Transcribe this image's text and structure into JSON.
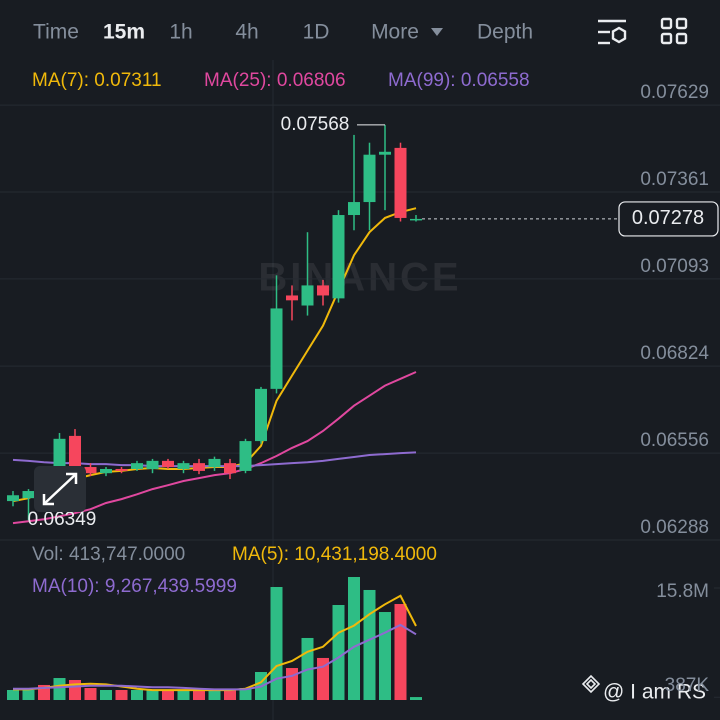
{
  "tabs": [
    "Time",
    "15m",
    "1h",
    "4h",
    "1D",
    "More",
    "Depth"
  ],
  "active_tab": 1,
  "watermark": "BINANCE",
  "credit": "@ I am RS",
  "chart_data": [
    {
      "type": "candlestick",
      "up_color": "#2ebd85",
      "down_color": "#f6465d",
      "open": [
        0.06408,
        0.06417,
        0.06476,
        0.06439,
        0.06609,
        0.06513,
        0.06494,
        0.06507,
        0.06507,
        0.06507,
        0.06532,
        0.06507,
        0.06525,
        0.06513,
        0.06525,
        0.06501,
        0.06593,
        0.06754,
        0.07042,
        0.07011,
        0.07073,
        0.07033,
        0.0729,
        0.0733,
        0.07476,
        0.07497,
        0.07275
      ],
      "high": [
        0.06439,
        0.06445,
        0.06485,
        0.06618,
        0.0663,
        0.06525,
        0.06513,
        0.06513,
        0.06532,
        0.06538,
        0.06538,
        0.06532,
        0.06538,
        0.06545,
        0.06538,
        0.066,
        0.0676,
        0.07104,
        0.07073,
        0.07237,
        0.0709,
        0.07305,
        0.07537,
        0.07513,
        0.07568,
        0.07513,
        0.0729
      ],
      "low": [
        0.06392,
        0.06349,
        0.06417,
        0.06426,
        0.06507,
        0.06485,
        0.06485,
        0.06494,
        0.06501,
        0.06494,
        0.06507,
        0.06494,
        0.06491,
        0.06501,
        0.06476,
        0.06494,
        0.06585,
        0.0674,
        0.06965,
        0.0698,
        0.07011,
        0.0702,
        0.07243,
        0.07243,
        0.07305,
        0.0727,
        0.0727
      ],
      "close": [
        0.06426,
        0.06439,
        0.06432,
        0.066,
        0.06516,
        0.06494,
        0.06507,
        0.06501,
        0.06525,
        0.06532,
        0.06513,
        0.06525,
        0.06501,
        0.06538,
        0.06494,
        0.06593,
        0.06754,
        0.07002,
        0.07027,
        0.07073,
        0.07042,
        0.0729,
        0.0733,
        0.07476,
        0.07485,
        0.07281,
        0.07278
      ],
      "ylim": [
        0.06288,
        0.07768
      ],
      "yticks": [
        0.07629,
        0.07361,
        0.07093,
        0.06824,
        0.06556,
        0.06288
      ],
      "grid": true,
      "last_price": 0.07278,
      "max_label": 0.07568,
      "min_label": 0.06349,
      "series": [
        {
          "name": "MA(7): 0.07311",
          "color": "#f0b90b",
          "values": [
            0.06408,
            0.06417,
            0.06439,
            0.06454,
            0.06476,
            0.06488,
            0.06498,
            0.06501,
            0.06507,
            0.0651,
            0.06507,
            0.06507,
            0.0651,
            0.06513,
            0.06513,
            0.06525,
            0.06578,
            0.06717,
            0.06795,
            0.06872,
            0.06949,
            0.07058,
            0.07166,
            0.07237,
            0.07281,
            0.07299,
            0.07311
          ]
        },
        {
          "name": "MA(25): 0.06806",
          "color": "#e0489f",
          "values": [
            0.0634,
            0.06346,
            0.06352,
            0.06361,
            0.06371,
            0.06383,
            0.06402,
            0.06414,
            0.06429,
            0.06445,
            0.06457,
            0.0647,
            0.06479,
            0.06488,
            0.06494,
            0.06507,
            0.06525,
            0.06547,
            0.06572,
            0.06593,
            0.06624,
            0.06662,
            0.06702,
            0.06733,
            0.06764,
            0.06785,
            0.06806
          ]
        },
        {
          "name": "MA(99): 0.06558",
          "color": "#8e6bd0",
          "values": [
            0.06535,
            0.06532,
            0.06528,
            0.06525,
            0.06525,
            0.06522,
            0.06522,
            0.06519,
            0.06519,
            0.06516,
            0.06516,
            0.06516,
            0.06516,
            0.06516,
            0.06516,
            0.06516,
            0.06519,
            0.06522,
            0.06525,
            0.06528,
            0.06532,
            0.06538,
            0.06544,
            0.0655,
            0.06553,
            0.06556,
            0.06558
          ]
        }
      ]
    },
    {
      "type": "bar",
      "title": "Vol: 413,747.0000",
      "values": [
        1410000,
        1410000,
        2120000,
        3100000,
        2820000,
        1690000,
        1410000,
        1410000,
        1410000,
        1410000,
        1270000,
        1410000,
        1270000,
        1270000,
        1410000,
        1690000,
        3950000,
        15940000,
        4510000,
        8750000,
        5930000,
        13400000,
        17350000,
        15520000,
        12410000,
        13540000,
        413747
      ],
      "ylim": [
        0,
        17350000
      ],
      "yticks": [
        {
          "value": 15800000,
          "label": "15.8M"
        },
        {
          "value": 387000,
          "label": "387K"
        }
      ],
      "series": [
        {
          "name": "MA(5): 10,431,198.4000",
          "color": "#f0b90b",
          "values": [
            1500000,
            1500000,
            1700000,
            2000000,
            2200000,
            2300000,
            2200000,
            1900000,
            1600000,
            1400000,
            1400000,
            1400000,
            1400000,
            1400000,
            1400000,
            1600000,
            2500000,
            4800000,
            5500000,
            6800000,
            7500000,
            9500000,
            10500000,
            12100000,
            13500000,
            14700000,
            10431198.4
          ]
        },
        {
          "name": "MA(10): 9,267,439.5999",
          "color": "#8e6bd0",
          "values": [
            1600000,
            1600000,
            1700000,
            1800000,
            1900000,
            2000000,
            2000000,
            2000000,
            1900000,
            1800000,
            1800000,
            1700000,
            1600000,
            1500000,
            1500000,
            1500000,
            1900000,
            3000000,
            3400000,
            4300000,
            4700000,
            6000000,
            7500000,
            8500000,
            9500000,
            10600000,
            9267439.5999
          ]
        }
      ]
    }
  ]
}
